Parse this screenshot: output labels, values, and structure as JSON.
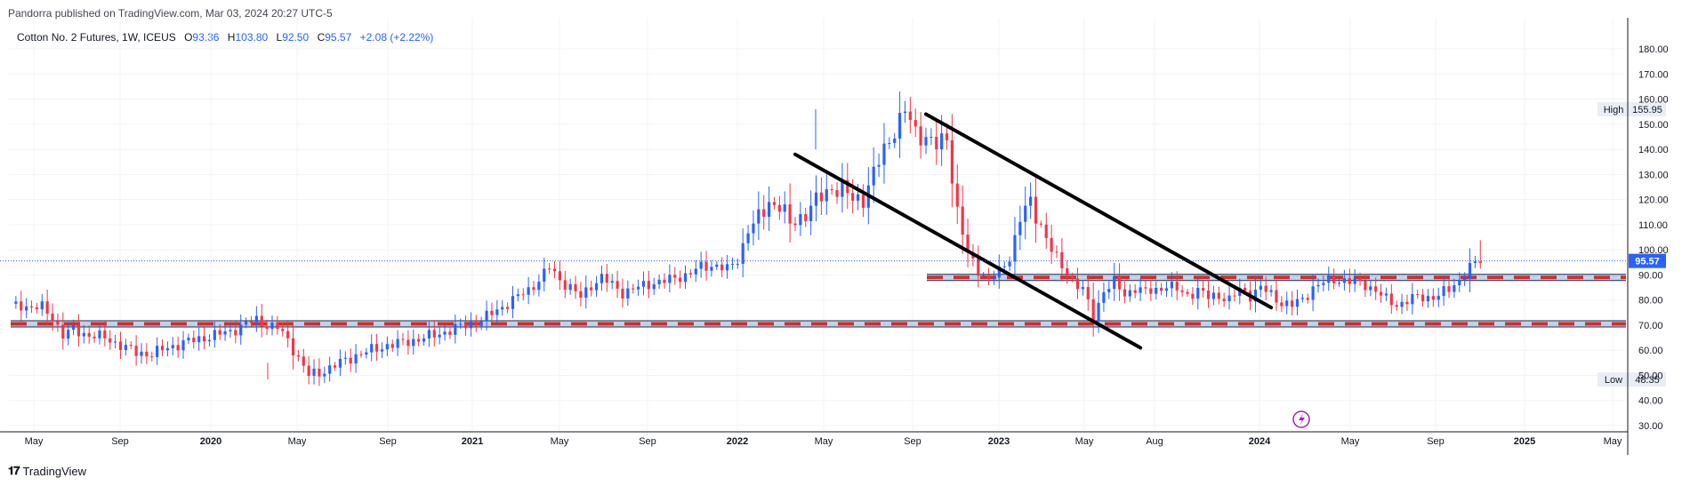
{
  "header": {
    "published_line": "Pandorra published on TradingView.com, Mar 03, 2024 20:27 UTC-5"
  },
  "legend": {
    "symbol": "Cotton No. 2 Futures, 1W, ICEUS",
    "open_label": "O",
    "open": "93.36",
    "high_label": "H",
    "high": "103.80",
    "low_label": "L",
    "low": "92.50",
    "close_label": "C",
    "close": "95.57",
    "change": "+2.08 (+2.22%)"
  },
  "footer": {
    "brand": "TradingView"
  },
  "colors": {
    "up": "#2962ff",
    "down": "#f23645",
    "support_red": "#d12d2d",
    "support_blue": "#9fb3d9",
    "trendline": "#000000",
    "grid": "#f0f3fa",
    "price_line": "#2962ff",
    "event_icon": "#9c27b0"
  },
  "chart_data": {
    "type": "candlestick",
    "title": "Cotton No. 2 Futures, 1W, ICEUS",
    "y_axis": {
      "ticks": [
        "180.00",
        "170.00",
        "160.00",
        "150.00",
        "140.00",
        "130.00",
        "120.00",
        "110.00",
        "100.00",
        "90.00",
        "80.00",
        "70.00",
        "60.00",
        "50.00",
        "40.00",
        "30.00"
      ],
      "range": [
        30,
        180
      ]
    },
    "x_axis": {
      "labels": [
        {
          "text": "May",
          "bold": false
        },
        {
          "text": "Sep",
          "bold": false
        },
        {
          "text": "2020",
          "bold": true
        },
        {
          "text": "May",
          "bold": false
        },
        {
          "text": "Sep",
          "bold": false
        },
        {
          "text": "2021",
          "bold": true
        },
        {
          "text": "May",
          "bold": false
        },
        {
          "text": "Sep",
          "bold": false
        },
        {
          "text": "2022",
          "bold": true
        },
        {
          "text": "May",
          "bold": false
        },
        {
          "text": "Sep",
          "bold": false
        },
        {
          "text": "2023",
          "bold": true
        },
        {
          "text": "May",
          "bold": false
        },
        {
          "text": "Aug",
          "bold": false
        },
        {
          "text": "2024",
          "bold": true
        },
        {
          "text": "May",
          "bold": false
        },
        {
          "text": "Sep",
          "bold": false
        },
        {
          "text": "2025",
          "bold": true
        },
        {
          "text": "May",
          "bold": false
        }
      ]
    },
    "price_path": [
      [
        0,
        77.5
      ],
      [
        2,
        78
      ],
      [
        4,
        77
      ],
      [
        6,
        77
      ],
      [
        8,
        73
      ],
      [
        10,
        66
      ],
      [
        12,
        68
      ],
      [
        15,
        66
      ],
      [
        18,
        65
      ],
      [
        21,
        62
      ],
      [
        24,
        59
      ],
      [
        27,
        58.5
      ],
      [
        30,
        61
      ],
      [
        33,
        63
      ],
      [
        36,
        64.5
      ],
      [
        39,
        66
      ],
      [
        42,
        67.5
      ],
      [
        45,
        70.5
      ],
      [
        47,
        72
      ],
      [
        49,
        70
      ],
      [
        51,
        69
      ],
      [
        53,
        64
      ],
      [
        55,
        57
      ],
      [
        57,
        50
      ],
      [
        59,
        51
      ],
      [
        61,
        53
      ],
      [
        63,
        55
      ],
      [
        66,
        58
      ],
      [
        69,
        60
      ],
      [
        72,
        62
      ],
      [
        75,
        63
      ],
      [
        78,
        64.5
      ],
      [
        81,
        66
      ],
      [
        84,
        68
      ],
      [
        87,
        70
      ],
      [
        90,
        72
      ],
      [
        93,
        76
      ],
      [
        96,
        80
      ],
      [
        99,
        84
      ],
      [
        101,
        88
      ],
      [
        103,
        93
      ],
      [
        105,
        88
      ],
      [
        107,
        85
      ],
      [
        109,
        81
      ],
      [
        111,
        86
      ],
      [
        113,
        89
      ],
      [
        115,
        86
      ],
      [
        117,
        83
      ],
      [
        120,
        85
      ],
      [
        123,
        87
      ],
      [
        126,
        88
      ],
      [
        129,
        90
      ],
      [
        132,
        93
      ],
      [
        135,
        94
      ],
      [
        137,
        92
      ],
      [
        139,
        96
      ],
      [
        141,
        108
      ],
      [
        143,
        112
      ],
      [
        145,
        119
      ],
      [
        147,
        118
      ],
      [
        149,
        110
      ],
      [
        151,
        113
      ],
      [
        153,
        117
      ],
      [
        155,
        121
      ],
      [
        157,
        125
      ],
      [
        159,
        124
      ],
      [
        161,
        120
      ],
      [
        163,
        121
      ],
      [
        165,
        130
      ],
      [
        167,
        140
      ],
      [
        169,
        148
      ],
      [
        171,
        155
      ],
      [
        173,
        147
      ],
      [
        175,
        145
      ],
      [
        177,
        141
      ],
      [
        179,
        145
      ],
      [
        181,
        115
      ],
      [
        183,
        98
      ],
      [
        185,
        92
      ],
      [
        187,
        88
      ],
      [
        189,
        91
      ],
      [
        191,
        97
      ],
      [
        193,
        113
      ],
      [
        195,
        118
      ],
      [
        197,
        110
      ],
      [
        199,
        100
      ],
      [
        201,
        93
      ],
      [
        203,
        88
      ],
      [
        205,
        84
      ],
      [
        207,
        73
      ],
      [
        209,
        84
      ],
      [
        211,
        87
      ],
      [
        213,
        82
      ],
      [
        215,
        85
      ],
      [
        217,
        83
      ],
      [
        219,
        84
      ],
      [
        221,
        86
      ],
      [
        223,
        84
      ],
      [
        225,
        82
      ],
      [
        227,
        84
      ],
      [
        229,
        81
      ],
      [
        231,
        82
      ],
      [
        233,
        80
      ],
      [
        235,
        84
      ],
      [
        237,
        82
      ],
      [
        239,
        85
      ],
      [
        241,
        82
      ],
      [
        243,
        79
      ],
      [
        245,
        78
      ],
      [
        247,
        80
      ],
      [
        249,
        85
      ],
      [
        251,
        87
      ],
      [
        253,
        88
      ],
      [
        255,
        88
      ],
      [
        257,
        87
      ],
      [
        259,
        86
      ],
      [
        261,
        84
      ],
      [
        263,
        80
      ],
      [
        265,
        78
      ],
      [
        267,
        80
      ],
      [
        269,
        81
      ],
      [
        271,
        81
      ],
      [
        273,
        82
      ],
      [
        275,
        84
      ],
      [
        277,
        88
      ],
      [
        279,
        93
      ],
      [
        281,
        95.57
      ]
    ],
    "high": "155.95",
    "low": "48.35",
    "high_label": "High",
    "low_label": "Low",
    "last_price": "95.57",
    "support_lines": [
      70.5,
      89
    ],
    "trendlines": [
      {
        "from": [
          150,
          138
        ],
        "to": [
          216,
          61
        ]
      },
      {
        "from": [
          175,
          154
        ],
        "to": [
          241,
          77
        ]
      }
    ]
  }
}
